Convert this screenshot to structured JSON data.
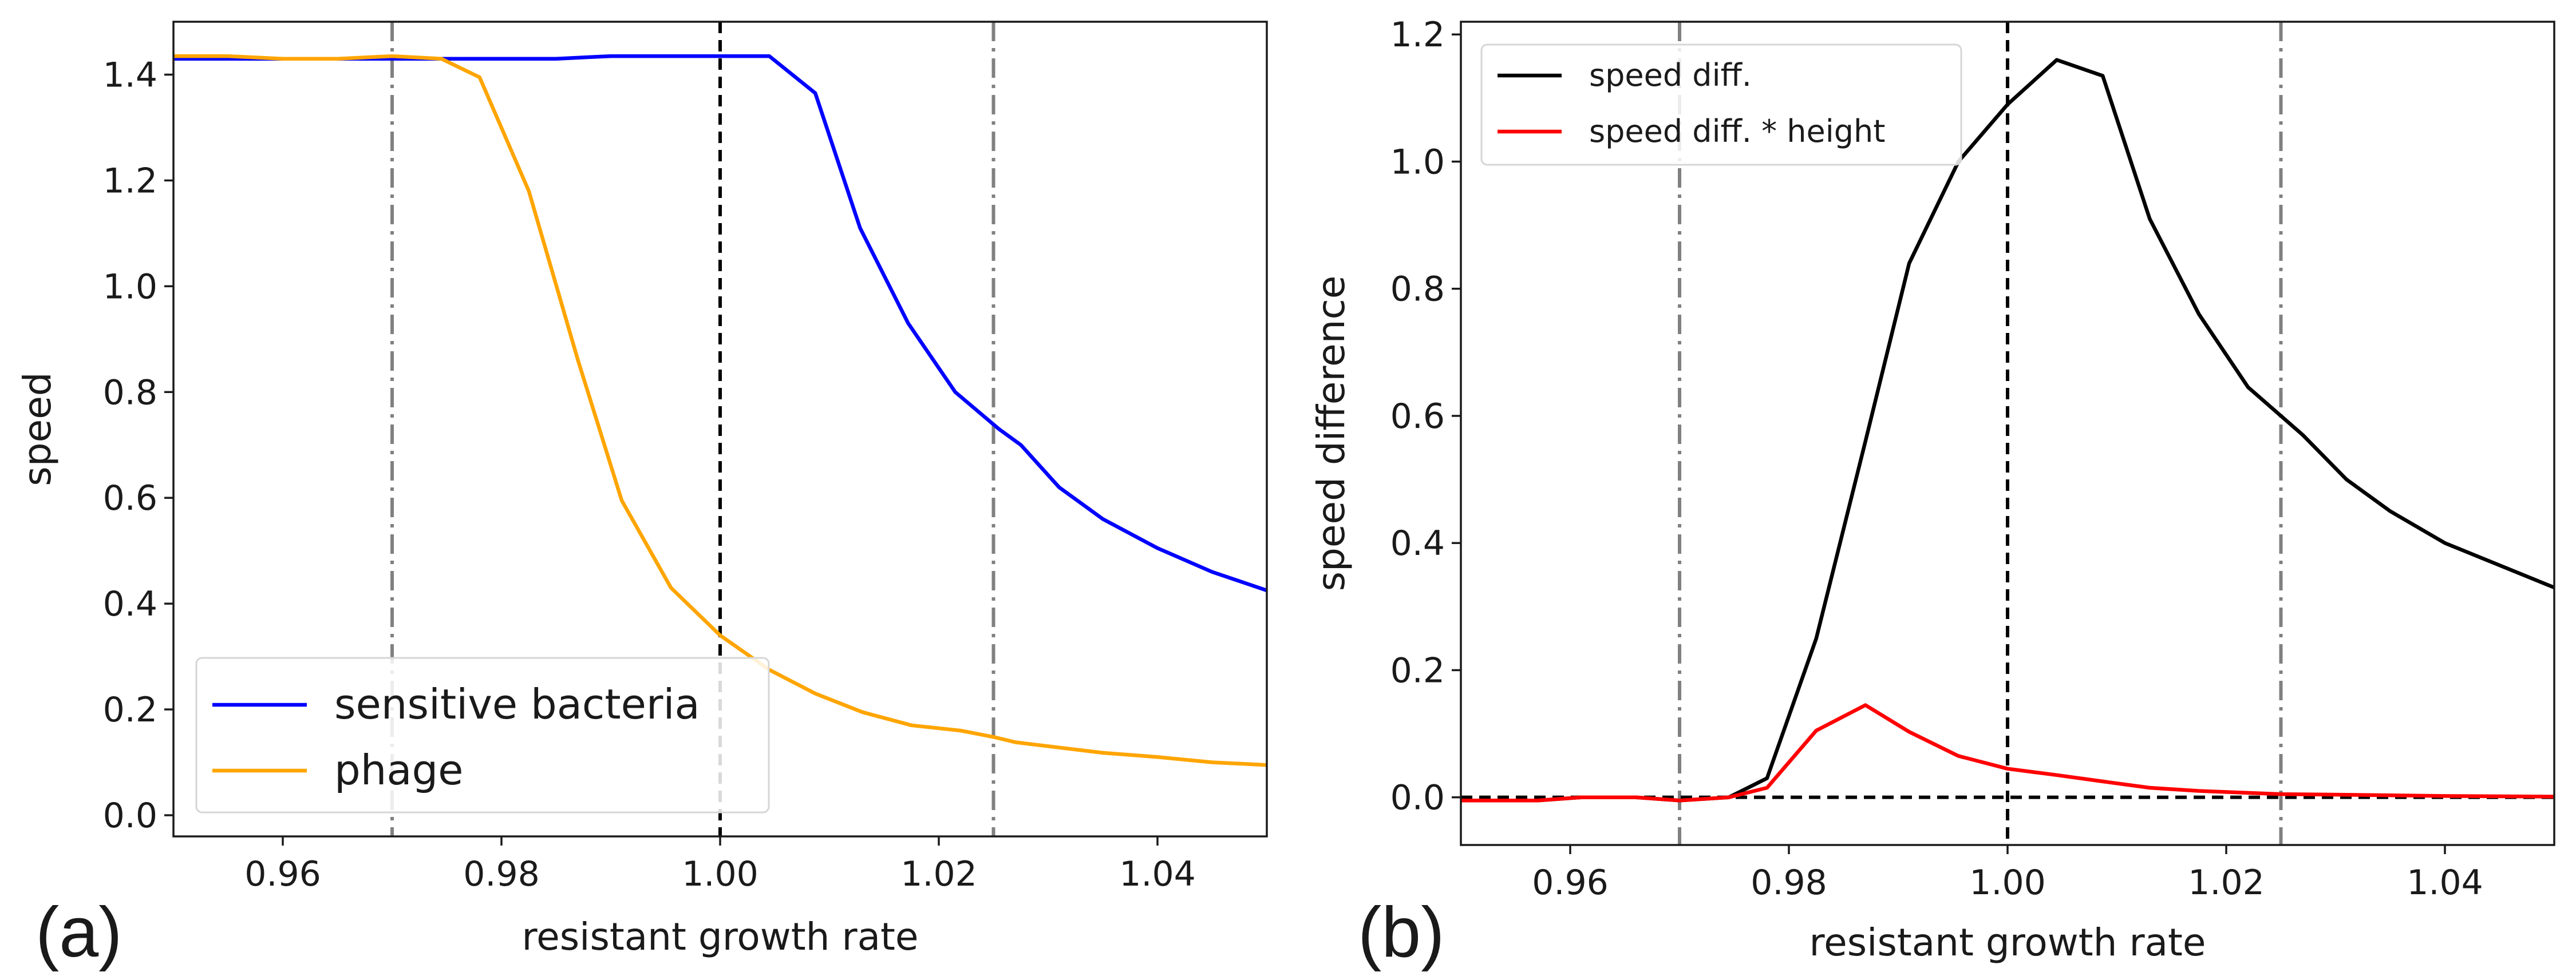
{
  "chart_data": [
    {
      "type": "line",
      "panel_label": "(a)",
      "xlabel": "resistant growth rate",
      "ylabel": "speed",
      "xlim": [
        0.95,
        1.05
      ],
      "ylim": [
        -0.04,
        1.5
      ],
      "xticks": [
        0.96,
        0.98,
        1.0,
        1.02,
        1.04
      ],
      "xtick_labels": [
        "0.96",
        "0.98",
        "1.00",
        "1.02",
        "1.04"
      ],
      "yticks": [
        0.0,
        0.2,
        0.4,
        0.6,
        0.8,
        1.0,
        1.2,
        1.4
      ],
      "ytick_labels": [
        "0.0",
        "0.2",
        "0.4",
        "0.6",
        "0.8",
        "1.0",
        "1.2",
        "1.4"
      ],
      "vlines": [
        {
          "x": 0.97,
          "style": "dashdot",
          "color": "#808080"
        },
        {
          "x": 1.0,
          "style": "dashed",
          "color": "#000000"
        },
        {
          "x": 1.025,
          "style": "dashdot",
          "color": "#808080"
        }
      ],
      "hlines": [],
      "legend_position": "lower-left",
      "series": [
        {
          "name": "sensitive bacteria",
          "color": "#0000ff",
          "x": [
            0.95,
            0.955,
            0.96,
            0.965,
            0.97,
            0.975,
            0.98,
            0.985,
            0.99,
            0.995,
            1.0,
            1.0045,
            1.0087,
            1.0128,
            1.0172,
            1.0215,
            1.0255,
            1.0275,
            1.031,
            1.035,
            1.04,
            1.045,
            1.05
          ],
          "values": [
            1.43,
            1.43,
            1.43,
            1.43,
            1.43,
            1.43,
            1.43,
            1.43,
            1.435,
            1.435,
            1.435,
            1.435,
            1.365,
            1.11,
            0.93,
            0.8,
            0.73,
            0.7,
            0.62,
            0.56,
            0.505,
            0.46,
            0.425
          ]
        },
        {
          "name": "phage",
          "color": "#ffa500",
          "x": [
            0.95,
            0.955,
            0.96,
            0.965,
            0.97,
            0.9745,
            0.978,
            0.9825,
            0.987,
            0.991,
            0.9955,
            1.0,
            1.0045,
            1.0087,
            1.013,
            1.0175,
            1.022,
            1.025,
            1.027,
            1.031,
            1.035,
            1.04,
            1.045,
            1.05
          ],
          "values": [
            1.435,
            1.435,
            1.43,
            1.43,
            1.435,
            1.43,
            1.395,
            1.18,
            0.86,
            0.595,
            0.43,
            0.34,
            0.275,
            0.23,
            0.195,
            0.17,
            0.16,
            0.148,
            0.138,
            0.128,
            0.118,
            0.11,
            0.1,
            0.095
          ]
        }
      ]
    },
    {
      "type": "line",
      "panel_label": "(b)",
      "xlabel": "resistant growth rate",
      "ylabel": "speed difference",
      "xlim": [
        0.95,
        1.05
      ],
      "ylim": [
        -0.075,
        1.22
      ],
      "xticks": [
        0.96,
        0.98,
        1.0,
        1.02,
        1.04
      ],
      "xtick_labels": [
        "0.96",
        "0.98",
        "1.00",
        "1.02",
        "1.04"
      ],
      "yticks": [
        0.0,
        0.2,
        0.4,
        0.6,
        0.8,
        1.0,
        1.2
      ],
      "ytick_labels": [
        "0.0",
        "0.2",
        "0.4",
        "0.6",
        "0.8",
        "1.0",
        "1.2"
      ],
      "vlines": [
        {
          "x": 0.97,
          "style": "dashdot",
          "color": "#808080"
        },
        {
          "x": 1.0,
          "style": "dashed",
          "color": "#000000"
        },
        {
          "x": 1.025,
          "style": "dashdot",
          "color": "#808080"
        }
      ],
      "hlines": [
        {
          "y": 0.0,
          "style": "dashed",
          "color": "#000000"
        }
      ],
      "legend_position": "top-left",
      "series": [
        {
          "name": "speed diff.",
          "color": "#000000",
          "x": [
            0.95,
            0.957,
            0.961,
            0.966,
            0.97,
            0.9745,
            0.978,
            0.9825,
            0.987,
            0.991,
            0.9955,
            1.0,
            1.0045,
            1.0087,
            1.013,
            1.0175,
            1.022,
            1.025,
            1.027,
            1.031,
            1.035,
            1.04,
            1.045,
            1.05
          ],
          "values": [
            -0.005,
            -0.005,
            0.0,
            0.0,
            -0.005,
            0.0,
            0.03,
            0.25,
            0.56,
            0.84,
            1.0,
            1.09,
            1.16,
            1.135,
            0.91,
            0.76,
            0.645,
            0.6,
            0.57,
            0.5,
            0.45,
            0.4,
            0.365,
            0.33
          ]
        },
        {
          "name": "speed diff. * height",
          "color": "#ff0000",
          "x": [
            0.95,
            0.957,
            0.961,
            0.966,
            0.97,
            0.9745,
            0.978,
            0.9825,
            0.987,
            0.991,
            0.9955,
            1.0,
            1.0045,
            1.0087,
            1.013,
            1.0175,
            1.022,
            1.025,
            1.031,
            1.04,
            1.05
          ],
          "values": [
            -0.005,
            -0.005,
            0.0,
            0.0,
            -0.005,
            0.0,
            0.015,
            0.105,
            0.145,
            0.103,
            0.065,
            0.045,
            0.035,
            0.025,
            0.015,
            0.01,
            0.007,
            0.005,
            0.004,
            0.002,
            0.001
          ]
        }
      ]
    }
  ]
}
